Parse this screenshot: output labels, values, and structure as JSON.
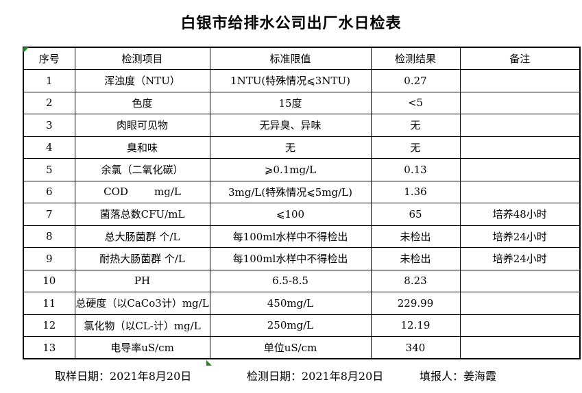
{
  "title": "白银市给排水公司出厂水日检表",
  "table": {
    "headers": [
      "序号",
      "检测项目",
      "标准限值",
      "检测结果",
      "备注"
    ],
    "rows": [
      {
        "no": "1",
        "item": "浑浊度（NTU）",
        "limit": "1NTU(特殊情况⩽3NTU)",
        "result": "0.27",
        "note": ""
      },
      {
        "no": "2",
        "item": "色度",
        "limit": "15度",
        "result": "<5",
        "note": ""
      },
      {
        "no": "3",
        "item": "肉眼可见物",
        "limit": "无异臭、异味",
        "result": "无",
        "note": ""
      },
      {
        "no": "4",
        "item": "臭和味",
        "limit": "无",
        "result": "无",
        "note": ""
      },
      {
        "no": "5",
        "item": "余氯（二氧化碳）",
        "limit": "⩾0.1mg/L",
        "result": "0.13",
        "note": ""
      },
      {
        "no": "6",
        "item": "COD        mg/L",
        "limit": "3mg/L(特殊情况⩽5mg/L)",
        "result": "1.36",
        "note": ""
      },
      {
        "no": "7",
        "item": "菌落总数CFU/mL",
        "limit": "⩽100",
        "result": "65",
        "note": "培养48小时"
      },
      {
        "no": "8",
        "item": "总大肠菌群 个/L",
        "limit": "每100ml水样中不得检出",
        "result": "未检出",
        "note": "培养24小时"
      },
      {
        "no": "9",
        "item": "耐热大肠菌群 个/L",
        "limit": "每100ml水样中不得检出",
        "result": "未检出",
        "note": "培养24小时"
      },
      {
        "no": "10",
        "item": "PH",
        "limit": "6.5-8.5",
        "result": "8.23",
        "note": ""
      },
      {
        "no": "11",
        "item": "总硬度（以CaCo3计）mg/L",
        "limit": "450mg/L",
        "result": "229.99",
        "note": ""
      },
      {
        "no": "12",
        "item": "氯化物（以CL-计）mg/L",
        "limit": "250mg/L",
        "result": "12.19",
        "note": ""
      },
      {
        "no": "13",
        "item": "电导率uS/cm",
        "limit": "单位uS/cm",
        "result": "340",
        "note": ""
      }
    ]
  },
  "footer": {
    "sample_date": "取样日期：2021年8月20日",
    "test_date": "检测日期：2021年8月20日",
    "reporter": "填报人：姜海霞"
  },
  "colors": {
    "border": "#000000",
    "background": "#ffffff",
    "error_marker_green": "#1e8a1e"
  }
}
